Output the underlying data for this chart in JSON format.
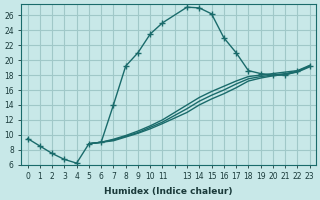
{
  "xlabel": "Humidex (Indice chaleur)",
  "bg_color": "#c8e8e8",
  "line_color": "#1a6b6b",
  "grid_color": "#a0c8c8",
  "xlim": [
    -0.5,
    23.5
  ],
  "ylim": [
    6,
    27.5
  ],
  "yticks": [
    6,
    8,
    10,
    12,
    14,
    16,
    18,
    20,
    22,
    24,
    26
  ],
  "xticks": [
    0,
    1,
    2,
    3,
    4,
    5,
    6,
    7,
    8,
    9,
    10,
    11,
    12,
    13,
    14,
    15,
    16,
    17,
    18,
    19,
    20,
    21,
    22,
    23
  ],
  "xtick_labels": [
    "0",
    "1",
    "2",
    "3",
    "4",
    "5",
    "6",
    "7",
    "8",
    "9",
    "10",
    "11",
    "",
    "13",
    "14",
    "15",
    "16",
    "17",
    "18",
    "19",
    "20",
    "21",
    "22",
    "23"
  ],
  "curve1_x": [
    0,
    1,
    2,
    3,
    4,
    5,
    6,
    7,
    8,
    9,
    10,
    11,
    13,
    14,
    15,
    16,
    17,
    18,
    19,
    20,
    21,
    22,
    23
  ],
  "curve1_y": [
    9.5,
    8.5,
    7.5,
    6.7,
    6.2,
    8.8,
    9.0,
    14.0,
    19.2,
    21.0,
    23.5,
    25.0,
    27.1,
    27.0,
    26.2,
    23.0,
    21.0,
    18.6,
    18.2,
    18.0,
    18.0,
    18.5,
    19.2
  ],
  "curve2_x": [
    5,
    6,
    7,
    8,
    9,
    10,
    11,
    13,
    14,
    15,
    16,
    17,
    18,
    19,
    20,
    21,
    22,
    23
  ],
  "curve2_y": [
    8.8,
    9.0,
    9.3,
    9.8,
    10.3,
    11.0,
    11.7,
    13.5,
    14.5,
    15.3,
    16.0,
    16.8,
    17.5,
    17.8,
    18.0,
    18.2,
    18.5,
    19.2
  ],
  "curve3_x": [
    5,
    6,
    7,
    8,
    9,
    10,
    11,
    13,
    14,
    15,
    16,
    17,
    18,
    19,
    20,
    21,
    22,
    23
  ],
  "curve3_y": [
    8.8,
    9.0,
    9.4,
    9.9,
    10.5,
    11.2,
    12.0,
    14.0,
    15.0,
    15.8,
    16.5,
    17.2,
    17.8,
    18.0,
    18.2,
    18.4,
    18.6,
    19.3
  ],
  "curve4_x": [
    5,
    6,
    7,
    8,
    9,
    10,
    11,
    13,
    14,
    15,
    16,
    17,
    18,
    19,
    20,
    21,
    22,
    23
  ],
  "curve4_y": [
    8.8,
    9.0,
    9.2,
    9.7,
    10.2,
    10.8,
    11.5,
    13.0,
    14.0,
    14.8,
    15.5,
    16.3,
    17.2,
    17.6,
    17.9,
    18.1,
    18.4,
    19.1
  ]
}
